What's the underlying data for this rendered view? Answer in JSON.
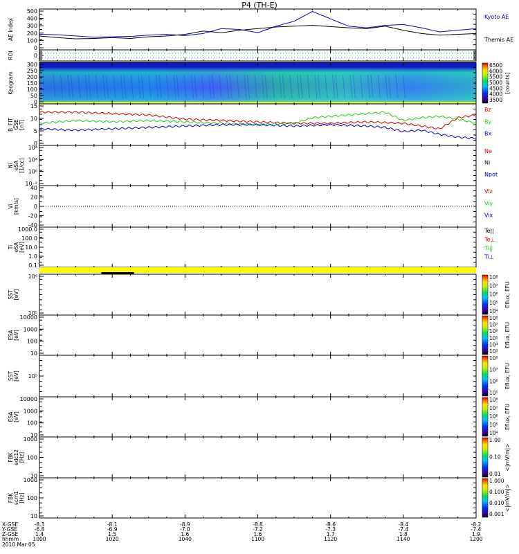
{
  "title": "P4 (TH-E)",
  "colors": {
    "blue": "#0000cc",
    "red": "#d40000",
    "green": "#22cc22",
    "black": "#000000",
    "yellow": "#ffff00",
    "cyan": "#00aaaa"
  },
  "chart_data": {
    "type": "line",
    "title": "P4 (TH-E)",
    "date_label": "2010 Mar 05",
    "time_range": [
      "1000",
      "1200"
    ],
    "panels": [
      {
        "id": "ae",
        "ylabel": [
          "AE Index"
        ],
        "yticks": [
          "500",
          "400",
          "300",
          "200",
          "100",
          "0"
        ],
        "ylim": [
          0,
          500
        ],
        "legend": [
          {
            "label": "Kyoto AE",
            "color": "#0000cc"
          },
          {
            "label": "Themis AE",
            "color": "#000000"
          }
        ],
        "series": [
          {
            "name": "Kyoto AE",
            "color": "#0000cc",
            "x": [
              0,
              5,
              10,
              15,
              20,
              25,
              30,
              35,
              40,
              45,
              50,
              55,
              60,
              65,
              70,
              75,
              80,
              85,
              90,
              95,
              100,
              105,
              110,
              115,
              120
            ],
            "y": [
              190,
              185,
              170,
              155,
              160,
              165,
              180,
              190,
              175,
              200,
              260,
              250,
              210,
              290,
              350,
              470,
              380,
              290,
              270,
              300,
              310,
              270,
              220,
              240,
              260
            ]
          },
          {
            "name": "Themis AE",
            "color": "#000000",
            "x": [
              0,
              5,
              10,
              15,
              20,
              25,
              30,
              35,
              40,
              45,
              50,
              55,
              60,
              65,
              70,
              75,
              80,
              85,
              90,
              95,
              100,
              105,
              110,
              115,
              120
            ],
            "y": [
              170,
              150,
              135,
              140,
              150,
              140,
              160,
              170,
              190,
              230,
              210,
              240,
              260,
              280,
              290,
              300,
              285,
              270,
              260,
              290,
              240,
              200,
              180,
              190,
              200
            ]
          }
        ]
      },
      {
        "id": "roi",
        "ylabel": [
          "ROI"
        ],
        "yticks": [
          "0"
        ]
      },
      {
        "id": "keogram",
        "ylabel": [
          "Keogram"
        ],
        "yticks": [
          "300",
          "250",
          "200",
          "150",
          "100",
          "50",
          "0"
        ],
        "ylim": [
          0,
          300
        ],
        "colorbar": {
          "ticks": [
            "6500",
            "6000",
            "5500",
            "5000",
            "4500",
            "4000",
            "3500"
          ],
          "label": "[counts]"
        }
      },
      {
        "id": "bfit",
        "ylabel": [
          "B_FIT",
          "GSE",
          "[nT]"
        ],
        "yticks": [
          "15",
          "10",
          "5",
          "0"
        ],
        "ylim": [
          0,
          15
        ],
        "legend": [
          {
            "label": "Bz",
            "color": "#d40000"
          },
          {
            "label": "By",
            "color": "#22cc22"
          },
          {
            "label": "Bx",
            "color": "#0000cc"
          }
        ],
        "series": [
          {
            "name": "Bz",
            "color": "#d40000",
            "x": [
              0,
              10,
              20,
              30,
              40,
              50,
              60,
              70,
              80,
              90,
              100,
              105,
              110,
              115,
              120
            ],
            "y": [
              12,
              12,
              11.5,
              11,
              9.5,
              9,
              8.5,
              8,
              8,
              8.5,
              8,
              7,
              6,
              10,
              11
            ]
          },
          {
            "name": "By",
            "color": "#22cc22",
            "x": [
              0,
              10,
              20,
              30,
              40,
              50,
              60,
              70,
              75,
              80,
              85,
              90,
              95,
              100,
              105,
              110,
              115,
              120
            ],
            "y": [
              8,
              9,
              8.5,
              9,
              8.5,
              8,
              7.5,
              8,
              10,
              10.5,
              11,
              11.5,
              12,
              9,
              10,
              10.5,
              9.5,
              8
            ]
          },
          {
            "name": "Bx",
            "color": "#0000cc",
            "x": [
              0,
              10,
              20,
              30,
              40,
              50,
              60,
              70,
              80,
              90,
              95,
              100,
              105,
              110,
              115,
              120
            ],
            "y": [
              6,
              5.5,
              6,
              6.5,
              7,
              7.5,
              7.5,
              7,
              7.5,
              7,
              6.5,
              5,
              5.5,
              4,
              3,
              2.5
            ]
          }
        ]
      },
      {
        "id": "ni",
        "ylabel": [
          "Ni",
          "eSA",
          "[1/cc]"
        ],
        "yticks": [
          "10⁴",
          "10²",
          "10⁰",
          "10⁻²"
        ],
        "legend": [
          {
            "label": "Ne",
            "color": "#d40000"
          },
          {
            "label": "Ni",
            "color": "#000000"
          },
          {
            "label": "Npot",
            "color": "#0000cc"
          }
        ]
      },
      {
        "id": "vi",
        "ylabel": [
          "Vi",
          "[km/s]"
        ],
        "yticks": [
          "40",
          "20",
          "0",
          "-20",
          "-40"
        ],
        "ylim": [
          -50,
          50
        ],
        "legend": [
          {
            "label": "Viz",
            "color": "#d40000"
          },
          {
            "label": "Viy",
            "color": "#22cc22"
          },
          {
            "label": "Vix",
            "color": "#0000cc"
          }
        ]
      },
      {
        "id": "ti",
        "ylabel": [
          "Ti",
          "eSA",
          "[eV]"
        ],
        "yticks": [
          "1000.0",
          "100.0",
          "10.0",
          "1.0",
          "0.1"
        ],
        "legend": [
          {
            "label": "Te||",
            "color": "#000000"
          },
          {
            "label": "Te⊥",
            "color": "#d40000"
          },
          {
            "label": "Ti||",
            "color": "#22cc22"
          },
          {
            "label": "Ti⊥",
            "color": "#0000cc"
          }
        ]
      },
      {
        "id": "flag",
        "ylabel": []
      },
      {
        "id": "sst_i",
        "ylabel": [
          "SST",
          "[eV]"
        ],
        "yticks": [
          "10⁶",
          "10⁵"
        ],
        "colorbar": {
          "ticks": [
            "10⁸",
            "10⁷",
            "10⁶",
            "10⁵",
            "10⁴"
          ],
          "label": "Eflux, EFU"
        }
      },
      {
        "id": "esa_i",
        "ylabel": [
          "ESA",
          "[eV]"
        ],
        "yticks": [
          "10000",
          "1000",
          "100",
          "10"
        ],
        "colorbar": {
          "ticks": [
            "10⁸",
            "10⁷",
            "10⁶",
            "10⁵",
            "10⁴",
            "10³"
          ],
          "label": "Eflux, EFU"
        }
      },
      {
        "id": "sst_e",
        "ylabel": [
          "SST",
          "[eV]"
        ],
        "yticks": [
          "10⁵"
        ],
        "colorbar": {
          "ticks": [
            "10⁸",
            "10⁷",
            "10⁶",
            "10⁵"
          ],
          "label": "Eflux, EFU"
        }
      },
      {
        "id": "esa_e",
        "ylabel": [
          "ESA",
          "[eV]"
        ],
        "yticks": [
          "10000",
          "1000",
          "100",
          "10"
        ],
        "colorbar": {
          "ticks": [
            "10⁸",
            "10⁷",
            "10⁶",
            "10⁵",
            "10⁴"
          ],
          "label": "Eflux, EFU"
        }
      },
      {
        "id": "fbk1",
        "ylabel": [
          "FBK",
          "edc12",
          "[Hz]"
        ],
        "yticks": [
          "1000",
          "100",
          "10"
        ],
        "colorbar": {
          "ticks": [
            "1.00",
            "0.10",
            "0.01"
          ],
          "label": "<|mV/m|>"
        }
      },
      {
        "id": "fbk2",
        "ylabel": [
          "FBK",
          "scm1",
          "[Hz]"
        ],
        "yticks": [
          "1000",
          "100",
          "10"
        ],
        "colorbar": {
          "ticks": [
            "1.000",
            "0.100",
            "0.010",
            "0.001"
          ],
          "label": "<|mV/m|>"
        }
      }
    ],
    "xaxis": {
      "row_labels": [
        "X-GSE",
        "Y-GSE",
        "Z-GSE",
        "hhmm",
        "2010 Mar 05"
      ],
      "columns": [
        [
          "-8.3",
          "-6.8",
          "1.4",
          "1000"
        ],
        [
          "-8.1",
          "-6.9",
          "1.5",
          "1020"
        ],
        [
          "-8.9",
          "-7.0",
          "1.6",
          "1040"
        ],
        [
          "-8.8",
          "-7.2",
          "1.6",
          "1100"
        ],
        [
          "-8.6",
          "-7.3",
          "1.7",
          "1120"
        ],
        [
          "-8.4",
          "-7.4",
          "1.8",
          "1140"
        ],
        [
          "-8.2",
          "-7.4",
          "1.9",
          "1200"
        ]
      ]
    }
  }
}
